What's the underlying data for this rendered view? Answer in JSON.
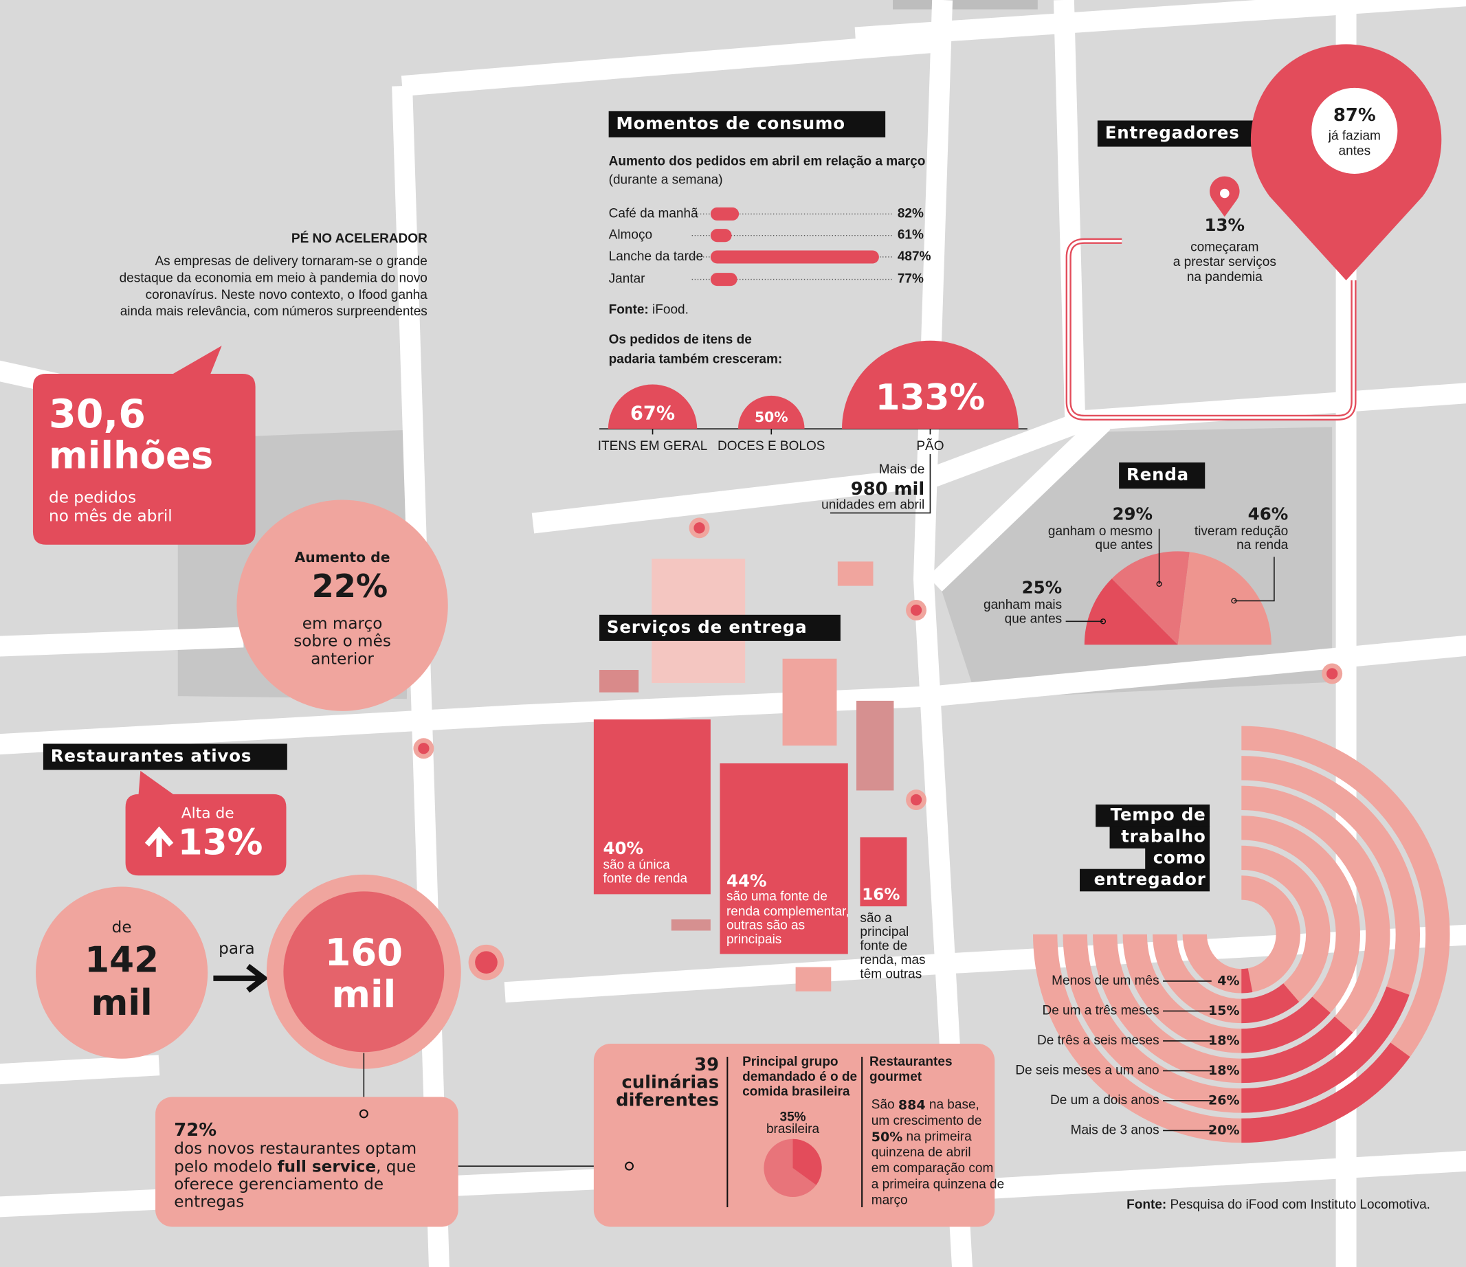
{
  "intro": {
    "title": "PÉ NO ACELERADOR",
    "lines": [
      "As empresas de delivery tornaram-se o grande",
      "destaque da economia em meio à pandemia do novo",
      "coronavírus. Neste novo contexto, o Ifood ganha",
      "ainda mais relevância, com números surpreendentes"
    ]
  },
  "orders": {
    "value": "30,6",
    "unit": "milhões",
    "caption": [
      "de pedidos",
      "no mês de abril"
    ]
  },
  "growth": {
    "lines": [
      "Aumento de",
      "22%",
      "em março",
      "sobre o mês",
      "anterior"
    ]
  },
  "restaurants": {
    "title": "Restaurantes ativos",
    "rise_label": "Alta de",
    "rise": "13%",
    "from_label": "de",
    "from": [
      "142",
      "mil"
    ],
    "to_label": "para",
    "to": [
      "160",
      "mil"
    ],
    "full_service": {
      "value": "72%",
      "lines": [
        [
          "dos novos restaurantes optam"
        ],
        [
          "pelo modelo ",
          "full service",
          ", que"
        ],
        [
          "oferece gerenciamento de"
        ],
        [
          "entregas"
        ]
      ]
    }
  },
  "consumption": {
    "title": "Momentos de consumo",
    "subtitle": "Aumento dos pedidos em abril em relação a março",
    "note": "(durante a semana)",
    "chart": {
      "type": "bar",
      "categories": [
        "Café da manhã",
        "Almoço",
        "Lanche da tarde",
        "Jantar"
      ],
      "values": [
        82,
        61,
        487,
        77
      ],
      "value_labels": [
        "82%",
        "61%",
        "487%",
        "77%"
      ],
      "color": "#e34c5b"
    },
    "source_label": "Fonte:",
    "source": "iFood.",
    "bakery": {
      "title": [
        "Os pedidos de itens de",
        "padaria também cresceram:"
      ],
      "chart": {
        "type": "semicircle",
        "categories": [
          "ITENS EM GERAL",
          "DOCES E BOLOS",
          "PÃO"
        ],
        "values": [
          67,
          50,
          133
        ],
        "value_labels": [
          "67%",
          "50%",
          "133%"
        ],
        "color": "#e34c5b"
      },
      "note": [
        "Mais de",
        "980 mil",
        "unidades em abril"
      ]
    }
  },
  "couriers": {
    "title": "Entregadores",
    "before": "87%",
    "before_text": [
      "já faziam",
      "antes"
    ],
    "new": "13%",
    "new_text": [
      "começaram",
      "a prestar serviços",
      "na pandemia"
    ]
  },
  "income": {
    "title": "Renda",
    "chart": {
      "type": "half-pie",
      "categories": [
        [
          "ganham mais",
          "que antes"
        ],
        [
          "ganham o mesmo",
          "que antes"
        ],
        [
          "tiveram redução",
          "na renda"
        ]
      ],
      "values": [
        25,
        29,
        46
      ],
      "value_labels": [
        "25%",
        "29%",
        "46%"
      ],
      "colors": [
        "#e34c5b",
        "#e8747a",
        "#ee958f"
      ]
    }
  },
  "delivery": {
    "title": "Serviços de entrega",
    "items": [
      {
        "value": "40%",
        "lines": [
          "são a única",
          "fonte de renda"
        ]
      },
      {
        "value": "44%",
        "lines": [
          "são uma fonte de",
          "renda complementar,",
          "outras são as",
          "principais"
        ]
      },
      {
        "value": "16%",
        "lines": [
          "são a",
          "principal",
          "fonte de",
          "renda, mas",
          "têm outras"
        ]
      }
    ]
  },
  "cuisines": {
    "count": "39",
    "count_text": [
      "culinárias",
      "diferentes"
    ],
    "group_title": [
      "Principal grupo",
      "demandado é o de",
      "comida brasileira"
    ],
    "pie": {
      "type": "pie",
      "categories": [
        "brasileira"
      ],
      "values": [
        35
      ],
      "value_labels": [
        "35%"
      ],
      "color": "#e34c5b"
    },
    "gourmet_title": [
      "Restaurantes",
      "gourmet"
    ],
    "gourmet_lines": [
      [
        "São ",
        "884",
        " na base,"
      ],
      [
        "um crescimento de"
      ],
      [
        "50%",
        " na primeira"
      ],
      [
        "quinzena de abril"
      ],
      [
        "em comparação com"
      ],
      [
        "a primeira quinzena de"
      ],
      [
        "março"
      ]
    ]
  },
  "tenure": {
    "title": [
      "Tempo de",
      "trabalho",
      "como",
      "entregador"
    ],
    "chart": {
      "type": "rings",
      "categories": [
        "Menos de um mês",
        "De um a três meses",
        "De três a seis meses",
        "De seis meses a um ano",
        "De um a dois anos",
        "Mais de 3 anos"
      ],
      "values": [
        4,
        15,
        18,
        18,
        26,
        20
      ],
      "value_labels": [
        "4%",
        "15%",
        "18%",
        "18%",
        "26%",
        "20%"
      ],
      "color": "#e34c5b"
    }
  },
  "footer": {
    "source_label": "Fonte:",
    "source": "Pesquisa do iFood com Instituto Locomotiva."
  }
}
